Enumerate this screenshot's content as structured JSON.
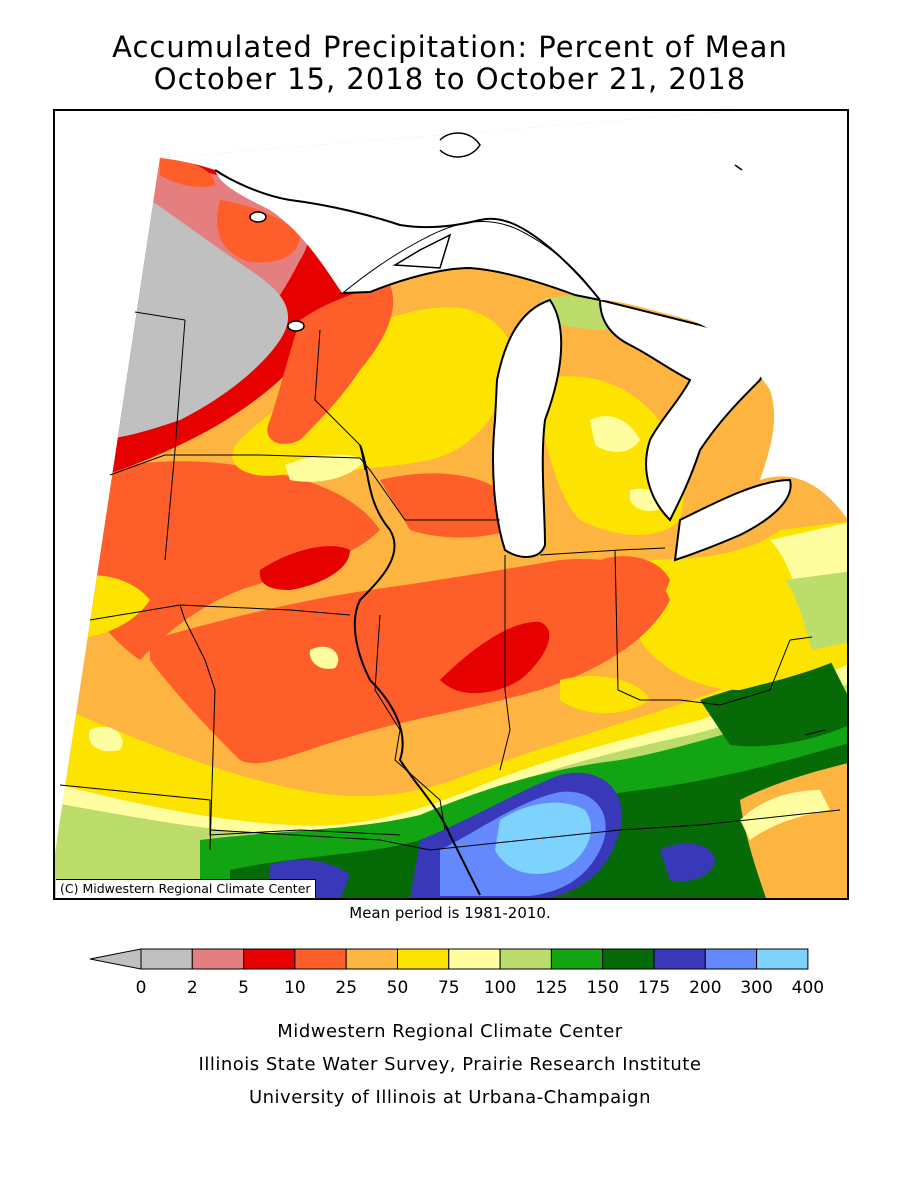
{
  "title_line1": "Accumulated Precipitation: Percent of Mean",
  "title_line2": "October 15, 2018 to October 21, 2018",
  "copyright": "(C) Midwestern Regional Climate Center",
  "mean_note": "Mean period is 1981-2010.",
  "legend": {
    "thresholds": [
      "0",
      "2",
      "5",
      "10",
      "25",
      "50",
      "75",
      "100",
      "125",
      "150",
      "175",
      "200",
      "300",
      "400"
    ],
    "colors": [
      "#c0c0c0",
      "#e57f7f",
      "#e60000",
      "#fe5f2a",
      "#feb440",
      "#fde300",
      "#fefea1",
      "#bcdc6c",
      "#13a414",
      "#066b06",
      "#3838b8",
      "#6489fc",
      "#7dd2fe"
    ],
    "arrow_color": "#c0c0c0"
  },
  "credits": {
    "line1": "Midwestern Regional Climate Center",
    "line2": "Illinois State Water Survey, Prairie Research Institute",
    "line3": "University of Illinois at Urbana-Champaign"
  }
}
